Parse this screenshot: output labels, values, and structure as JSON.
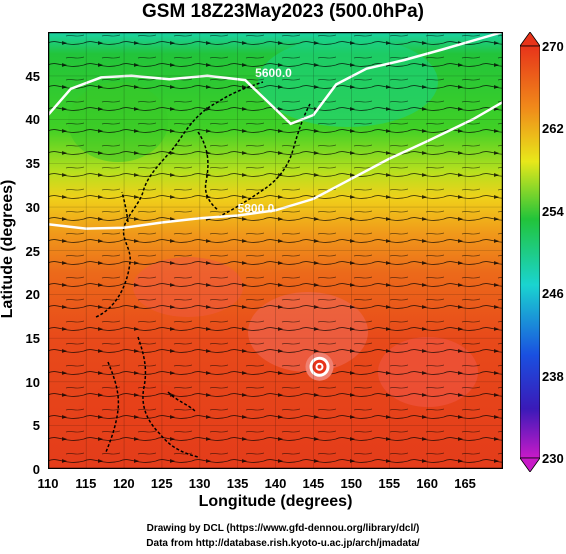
{
  "title": "GSM 18Z23May2023 (500.0hPa)",
  "xlabel": "Longitude (degrees)",
  "ylabel": "Latitude  (degrees)",
  "x_ticks": [
    "110",
    "115",
    "120",
    "125",
    "130",
    "135",
    "140",
    "145",
    "150",
    "155",
    "160",
    "165"
  ],
  "y_ticks": [
    "0",
    "5",
    "10",
    "15",
    "20",
    "25",
    "30",
    "35",
    "40",
    "45"
  ],
  "colorbar_ticks": [
    "270",
    "262",
    "254",
    "246",
    "238",
    "230"
  ],
  "contour_labels": [
    "5600.0",
    "5800.0"
  ],
  "credit_line1": "Drawing by DCL (https://www.gfd-dennou.org/library/dcl/)",
  "credit_line2": "Data from http://database.rish.kyoto-u.ac.jp/arch/jmadata/",
  "colors": {
    "warm": "#e8341a",
    "orange": "#f07a1a",
    "yellow": "#e8d21a",
    "green": "#22c43a",
    "cyan": "#1ad4d0",
    "blue": "#1a50e0",
    "magenta": "#c81ac8"
  },
  "chart_data": {
    "type": "heatmap",
    "xlim": [
      110,
      170
    ],
    "ylim": [
      0,
      50
    ],
    "colorbar_range": [
      230,
      270
    ],
    "contours": [
      {
        "label": "5600.0",
        "lon": [
          110,
          113,
          117,
          121,
          126,
          131,
          136,
          139,
          142,
          145,
          148,
          152,
          157,
          162,
          166,
          170
        ],
        "lat": [
          40.5,
          43.5,
          44.8,
          45.0,
          44.6,
          45.0,
          44.5,
          42.0,
          39.5,
          40.5,
          44.0,
          45.8,
          46.8,
          48.0,
          49.0,
          50.0
        ]
      },
      {
        "label": "5800.0",
        "lon": [
          110,
          115,
          120,
          125,
          130,
          135,
          140,
          145,
          150,
          155,
          160,
          166,
          170
        ],
        "lat": [
          28.0,
          27.5,
          27.6,
          28.2,
          28.7,
          29.0,
          29.6,
          30.9,
          33.2,
          35.5,
          37.5,
          40.0,
          42.0
        ]
      }
    ],
    "cyclone_center": {
      "lon": 145.8,
      "lat": 11.7
    }
  }
}
